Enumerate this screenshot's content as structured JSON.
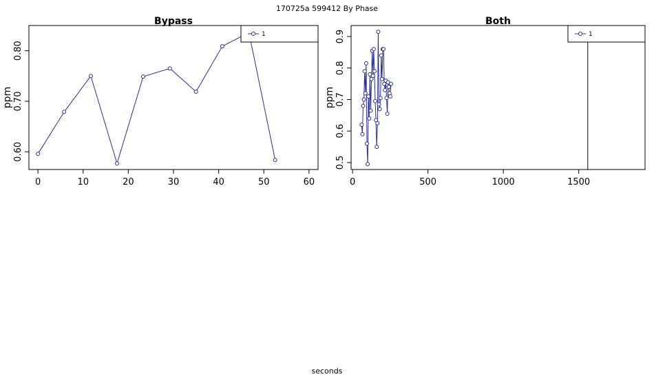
{
  "page": {
    "title": "170725a   599412   By Phase",
    "xlabel": "seconds"
  },
  "colors": {
    "series": "#2b2b9e",
    "axis": "#000000"
  },
  "chart_data": [
    {
      "type": "line",
      "title": "Bypass",
      "ylabel": "ppm",
      "xlim": [
        -2,
        62
      ],
      "ylim": [
        0.565,
        0.85
      ],
      "xticks": [
        0,
        10,
        20,
        30,
        40,
        50,
        60
      ],
      "yticks": [
        0.6,
        0.7,
        0.8
      ],
      "ytick_labels": [
        "0.60",
        "0.70",
        "0.80"
      ],
      "legend": {
        "position": "top-right",
        "entries": [
          "1"
        ]
      },
      "series": [
        {
          "name": "1",
          "x": [
            0,
            5.8,
            11.7,
            17.5,
            23.3,
            29.2,
            35.0,
            40.8,
            46.7,
            52.5
          ],
          "y": [
            0.596,
            0.679,
            0.75,
            0.577,
            0.749,
            0.765,
            0.719,
            0.809,
            0.836,
            0.584
          ]
        }
      ]
    },
    {
      "type": "line",
      "title": "Both",
      "ylabel": "ppm",
      "xlim": [
        -10,
        1940
      ],
      "ylim": [
        0.478,
        0.935
      ],
      "xticks": [
        0,
        500,
        1000,
        1500
      ],
      "yticks": [
        0.5,
        0.6,
        0.7,
        0.8,
        0.9
      ],
      "ytick_labels": [
        "0.5",
        "0.6",
        "0.7",
        "0.8",
        "0.9"
      ],
      "vline": 1560,
      "legend": {
        "position": "top-right",
        "entries": [
          "1"
        ]
      },
      "series": [
        {
          "name": "1",
          "x": [
            60,
            65,
            70,
            75,
            80,
            85,
            90,
            95,
            100,
            105,
            110,
            115,
            120,
            125,
            130,
            135,
            140,
            145,
            150,
            155,
            160,
            165,
            170,
            175,
            180,
            185,
            190,
            195,
            200,
            205,
            210,
            215,
            220,
            225,
            230,
            235,
            240,
            245,
            250,
            255
          ],
          "y": [
            0.62,
            0.59,
            0.68,
            0.7,
            0.79,
            0.72,
            0.815,
            0.56,
            0.495,
            0.71,
            0.64,
            0.78,
            0.665,
            0.765,
            0.855,
            0.775,
            0.86,
            0.79,
            0.695,
            0.635,
            0.55,
            0.625,
            0.915,
            0.685,
            0.67,
            0.705,
            0.84,
            0.765,
            0.86,
            0.86,
            0.75,
            0.73,
            0.76,
            0.705,
            0.655,
            0.755,
            0.74,
            0.72,
            0.71,
            0.75
          ]
        }
      ]
    }
  ]
}
